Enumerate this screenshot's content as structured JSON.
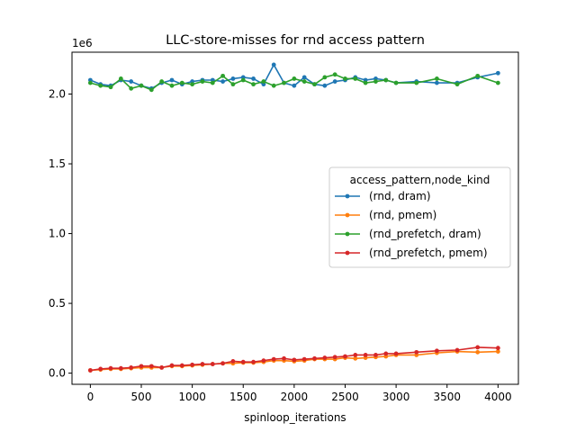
{
  "chart_data": {
    "type": "line",
    "title": "LLC-store-misses for rnd access pattern",
    "xlabel": "spinloop_iterations",
    "ylabel": "",
    "y_offset_label": "1e6",
    "xlim": [
      -180,
      4200
    ],
    "ylim": [
      -0.08,
      2.3
    ],
    "x_ticks": [
      0,
      500,
      1000,
      1500,
      2000,
      2500,
      3000,
      3500,
      4000
    ],
    "y_ticks": [
      0.0,
      0.5,
      1.0,
      1.5,
      2.0
    ],
    "y_tick_labels": [
      "0.0",
      "0.5",
      "1.0",
      "1.5",
      "2.0"
    ],
    "grid": false,
    "legend_title": "access_pattern,node_kind",
    "legend_position": "center-right",
    "series": [
      {
        "name": "(rnd, dram)",
        "color": "#1f77b4",
        "x": [
          0,
          100,
          200,
          300,
          400,
          500,
          600,
          700,
          800,
          900,
          1000,
          1100,
          1200,
          1300,
          1400,
          1500,
          1600,
          1700,
          1800,
          1900,
          2000,
          2100,
          2200,
          2300,
          2400,
          2500,
          2600,
          2700,
          2800,
          2900,
          3000,
          3200,
          3400,
          3600,
          3800,
          4000
        ],
        "y": [
          2.1,
          2.07,
          2.06,
          2.1,
          2.09,
          2.06,
          2.04,
          2.08,
          2.1,
          2.07,
          2.09,
          2.1,
          2.1,
          2.09,
          2.11,
          2.12,
          2.11,
          2.07,
          2.21,
          2.08,
          2.06,
          2.12,
          2.07,
          2.06,
          2.09,
          2.1,
          2.12,
          2.1,
          2.11,
          2.1,
          2.08,
          2.09,
          2.08,
          2.08,
          2.12,
          2.15
        ]
      },
      {
        "name": "(rnd, pmem)",
        "color": "#ff7f0e",
        "x": [
          0,
          100,
          200,
          300,
          400,
          500,
          600,
          700,
          800,
          900,
          1000,
          1100,
          1200,
          1300,
          1400,
          1500,
          1600,
          1700,
          1800,
          1900,
          2000,
          2100,
          2200,
          2300,
          2400,
          2500,
          2600,
          2700,
          2800,
          2900,
          3000,
          3200,
          3400,
          3600,
          3800,
          4000
        ],
        "y": [
          0.02,
          0.025,
          0.03,
          0.03,
          0.035,
          0.04,
          0.04,
          0.04,
          0.05,
          0.05,
          0.055,
          0.06,
          0.065,
          0.07,
          0.07,
          0.075,
          0.075,
          0.08,
          0.09,
          0.09,
          0.085,
          0.09,
          0.1,
          0.1,
          0.1,
          0.11,
          0.105,
          0.11,
          0.115,
          0.12,
          0.13,
          0.13,
          0.145,
          0.155,
          0.15,
          0.155
        ]
      },
      {
        "name": "(rnd_prefetch, dram)",
        "color": "#2ca02c",
        "x": [
          0,
          100,
          200,
          300,
          400,
          500,
          600,
          700,
          800,
          900,
          1000,
          1100,
          1200,
          1300,
          1400,
          1500,
          1600,
          1700,
          1800,
          1900,
          2000,
          2100,
          2200,
          2300,
          2400,
          2500,
          2600,
          2700,
          2800,
          2900,
          3000,
          3200,
          3400,
          3600,
          3800,
          4000
        ],
        "y": [
          2.08,
          2.06,
          2.05,
          2.11,
          2.04,
          2.06,
          2.03,
          2.09,
          2.06,
          2.08,
          2.07,
          2.09,
          2.08,
          2.13,
          2.07,
          2.1,
          2.07,
          2.09,
          2.06,
          2.08,
          2.11,
          2.09,
          2.07,
          2.12,
          2.14,
          2.11,
          2.11,
          2.08,
          2.09,
          2.1,
          2.08,
          2.08,
          2.11,
          2.07,
          2.13,
          2.08
        ]
      },
      {
        "name": "(rnd_prefetch, pmem)",
        "color": "#d62728",
        "x": [
          0,
          100,
          200,
          300,
          400,
          500,
          600,
          700,
          800,
          900,
          1000,
          1100,
          1200,
          1300,
          1400,
          1500,
          1600,
          1700,
          1800,
          1900,
          2000,
          2100,
          2200,
          2300,
          2400,
          2500,
          2600,
          2700,
          2800,
          2900,
          3000,
          3200,
          3400,
          3600,
          3800,
          4000
        ],
        "y": [
          0.02,
          0.03,
          0.035,
          0.035,
          0.04,
          0.05,
          0.05,
          0.04,
          0.055,
          0.055,
          0.06,
          0.065,
          0.065,
          0.07,
          0.085,
          0.08,
          0.08,
          0.09,
          0.1,
          0.105,
          0.095,
          0.1,
          0.105,
          0.11,
          0.115,
          0.12,
          0.13,
          0.13,
          0.13,
          0.14,
          0.14,
          0.15,
          0.16,
          0.165,
          0.185,
          0.18
        ]
      }
    ]
  }
}
